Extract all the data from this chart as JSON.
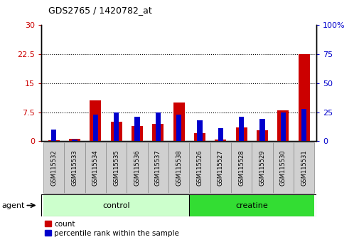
{
  "title": "GDS2765 / 1420782_at",
  "categories": [
    "GSM115532",
    "GSM115533",
    "GSM115534",
    "GSM115535",
    "GSM115536",
    "GSM115537",
    "GSM115538",
    "GSM115526",
    "GSM115527",
    "GSM115528",
    "GSM115529",
    "GSM115530",
    "GSM115531"
  ],
  "count_values": [
    0.3,
    0.6,
    10.5,
    5.0,
    4.0,
    4.5,
    10.0,
    2.0,
    0.4,
    3.5,
    2.8,
    8.0,
    22.5
  ],
  "percentile_values": [
    10.0,
    1.5,
    23.0,
    25.0,
    21.0,
    25.0,
    23.0,
    18.0,
    11.0,
    21.0,
    19.0,
    25.0,
    28.0
  ],
  "left_ylim": [
    0,
    30
  ],
  "right_ylim": [
    0,
    100
  ],
  "left_yticks": [
    0,
    7.5,
    15,
    22.5,
    30
  ],
  "right_yticks": [
    0,
    25,
    50,
    75,
    100
  ],
  "left_tick_labels": [
    "0",
    "7.5",
    "15",
    "22.5",
    "30"
  ],
  "right_tick_labels": [
    "0",
    "25",
    "50",
    "75",
    "100%"
  ],
  "bar_color_red": "#cc0000",
  "bar_color_blue": "#0000cc",
  "n_control": 7,
  "n_creatine": 6,
  "control_color": "#ccffcc",
  "creatine_color": "#33dd33",
  "bar_width": 0.55,
  "background_color": "#ffffff",
  "tick_area_color": "#d0d0d0",
  "agent_label": "agent",
  "control_label": "control",
  "creatine_label": "creatine",
  "legend_count_label": "count",
  "legend_percentile_label": "percentile rank within the sample"
}
